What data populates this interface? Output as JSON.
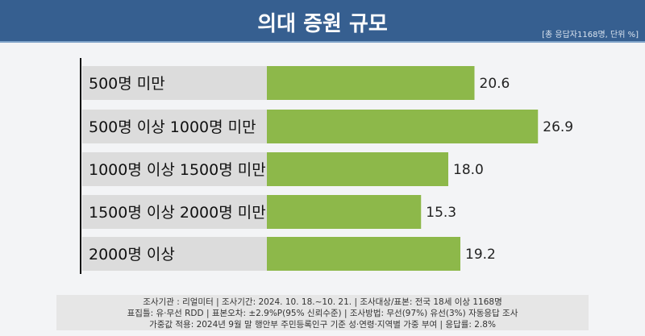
{
  "header": {
    "title": "의대 증원 규모",
    "note": "[총 응답자1168명, 단위 %]"
  },
  "chart_data": {
    "type": "bar",
    "orientation": "horizontal",
    "title": "의대 증원 규모",
    "categories": [
      "500명 미만",
      "500명 이상 1000명 미만",
      "1000명 이상 1500명 미만",
      "1500명 이상 2000명 미만",
      "2000명 이상"
    ],
    "values": [
      20.6,
      26.9,
      18.0,
      15.3,
      19.2
    ],
    "value_labels": [
      "20.6",
      "26.9",
      "18.0",
      "15.3",
      "19.2"
    ],
    "unit": "%",
    "color": "#8db84a",
    "xlim": [
      0,
      30
    ]
  },
  "footer": {
    "lines": [
      "조사기관 : 리얼미터  |  조사기간: 2024. 10. 18.~10. 21. | 조사대상/표본: 전국 18세 이상 1168명",
      "표집틀: 유·무선 RDD | 표본오차: ±2.9%P(95% 신뢰수준) | 조사방법: 무선(97%) 유선(3%) 자동응답 조사",
      "가중값 적용: 2024년 9월 말 행안부 주민등록인구 기준 성·연령·지역별 가중 부여 | 응답률: 2.8%"
    ]
  }
}
